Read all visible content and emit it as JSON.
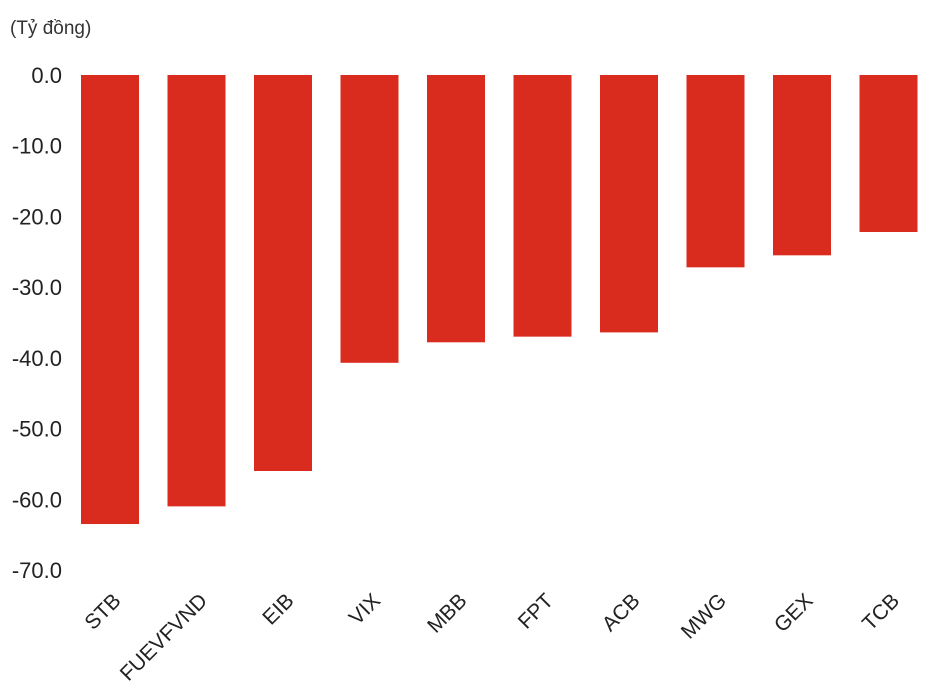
{
  "chart_data": {
    "type": "bar",
    "unit_label": "(Tỷ đồng)",
    "categories": [
      "STB",
      "FUEVFVND",
      "EIB",
      "VIX",
      "MBB",
      "FPT",
      "ACB",
      "MWG",
      "GEX",
      "TCB"
    ],
    "values": [
      -63.5,
      -61.0,
      -56.0,
      -40.7,
      -37.8,
      -37.0,
      -36.4,
      -27.2,
      -25.5,
      -22.2
    ],
    "ylim": [
      -70,
      0
    ],
    "yticks": [
      0,
      -10,
      -20,
      -30,
      -40,
      -50,
      -60,
      -70
    ],
    "ytick_labels": [
      "0.0",
      "-10.0",
      "-20.0",
      "-30.0",
      "-40.0",
      "-50.0",
      "-60.0",
      "-70.0"
    ],
    "bar_color": "#d92b1e",
    "grid": false,
    "legend": "none"
  }
}
